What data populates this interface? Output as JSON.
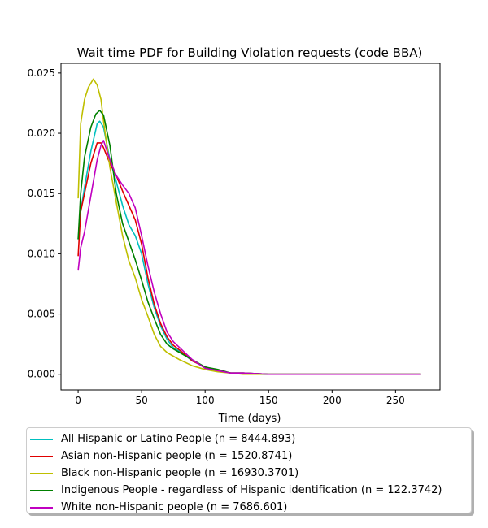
{
  "chart_data": {
    "type": "line",
    "title": "Wait time PDF for Building Violation  requests (code BBA)",
    "xlabel": "Time (days)",
    "ylabel": "",
    "xlim": [
      -13.5,
      285
    ],
    "ylim": [
      -0.0013,
      0.0258
    ],
    "x_ticks": [
      0,
      50,
      100,
      150,
      200,
      250
    ],
    "y_ticks": [
      0.0,
      0.005,
      0.01,
      0.015,
      0.02,
      0.025
    ],
    "grid": false,
    "legend_position": "below",
    "series": [
      {
        "name": "All Hispanic or Latino People (n = 8444.893)",
        "color": "#00bfbf",
        "x": [
          0,
          2,
          5,
          10,
          15,
          17,
          20,
          25,
          30,
          35,
          40,
          45,
          50,
          55,
          60,
          65,
          70,
          75,
          80,
          90,
          100,
          110,
          120,
          130,
          150,
          170,
          200,
          230,
          250,
          270
        ],
        "y": [
          0.0112,
          0.0135,
          0.0155,
          0.0185,
          0.0208,
          0.021,
          0.0205,
          0.0178,
          0.016,
          0.014,
          0.0124,
          0.0115,
          0.01,
          0.0075,
          0.0055,
          0.004,
          0.0029,
          0.0022,
          0.0019,
          0.0011,
          0.0006,
          0.0003,
          0.0001,
          0.0001,
          0.0,
          0.0,
          0.0,
          0.0,
          0.0,
          0.0
        ]
      },
      {
        "name": "Asian non-Hispanic people (n = 1520.8741)",
        "color": "#e00000",
        "x": [
          0,
          2,
          5,
          10,
          15,
          18,
          20,
          25,
          30,
          35,
          40,
          45,
          50,
          55,
          60,
          65,
          70,
          75,
          80,
          90,
          100,
          110,
          120,
          130,
          150,
          170,
          200,
          230,
          250,
          270
        ],
        "y": [
          0.0098,
          0.0135,
          0.015,
          0.0175,
          0.0192,
          0.0192,
          0.0188,
          0.0175,
          0.0165,
          0.0152,
          0.014,
          0.0128,
          0.0108,
          0.008,
          0.0058,
          0.0042,
          0.0031,
          0.0024,
          0.002,
          0.0011,
          0.0006,
          0.0003,
          0.0001,
          0.0001,
          0.0,
          0.0,
          0.0,
          0.0,
          0.0,
          0.0
        ]
      },
      {
        "name": "Black non-Hispanic people (n = 16930.3701)",
        "color": "#bfbf00",
        "x": [
          0,
          2,
          5,
          8,
          12,
          15,
          18,
          20,
          25,
          30,
          35,
          40,
          45,
          50,
          55,
          60,
          65,
          70,
          75,
          80,
          90,
          100,
          110,
          120,
          130,
          150,
          170,
          200,
          230,
          250,
          270
        ],
        "y": [
          0.0146,
          0.0208,
          0.0228,
          0.0238,
          0.0245,
          0.024,
          0.0228,
          0.021,
          0.0172,
          0.0143,
          0.0115,
          0.0094,
          0.008,
          0.0062,
          0.0048,
          0.0033,
          0.0023,
          0.0018,
          0.0015,
          0.0012,
          0.0007,
          0.0004,
          0.0002,
          0.0001,
          0.0,
          0.0,
          0.0,
          0.0,
          0.0,
          0.0,
          0.0
        ]
      },
      {
        "name": "Indigenous People - regardless of Hispanic identification (n = 122.3742)",
        "color": "#008000",
        "x": [
          0,
          2,
          5,
          10,
          14,
          17,
          20,
          25,
          30,
          35,
          40,
          45,
          50,
          55,
          60,
          65,
          70,
          75,
          80,
          90,
          100,
          110,
          120,
          130,
          150,
          170,
          200,
          230,
          250,
          270
        ],
        "y": [
          0.0112,
          0.015,
          0.018,
          0.0205,
          0.0216,
          0.0219,
          0.0215,
          0.019,
          0.015,
          0.0125,
          0.011,
          0.0095,
          0.0078,
          0.006,
          0.0046,
          0.0033,
          0.0025,
          0.0021,
          0.0018,
          0.0012,
          0.0006,
          0.0004,
          0.0001,
          0.0001,
          0.0,
          0.0,
          0.0,
          0.0,
          0.0,
          0.0
        ]
      },
      {
        "name": "White non-Hispanic people (n = 7686.601)",
        "color": "#c000c0",
        "x": [
          0,
          2,
          5,
          10,
          15,
          18,
          20,
          25,
          30,
          35,
          40,
          45,
          50,
          55,
          60,
          65,
          70,
          75,
          80,
          90,
          100,
          110,
          120,
          130,
          150,
          170,
          200,
          230,
          250,
          270
        ],
        "y": [
          0.0086,
          0.0105,
          0.0118,
          0.0148,
          0.0178,
          0.019,
          0.0194,
          0.0178,
          0.0165,
          0.0157,
          0.015,
          0.0138,
          0.0115,
          0.009,
          0.0068,
          0.005,
          0.0035,
          0.0027,
          0.0022,
          0.0012,
          0.0005,
          0.0003,
          0.0001,
          0.0001,
          0.0,
          0.0,
          0.0,
          0.0,
          0.0,
          0.0
        ]
      }
    ]
  }
}
